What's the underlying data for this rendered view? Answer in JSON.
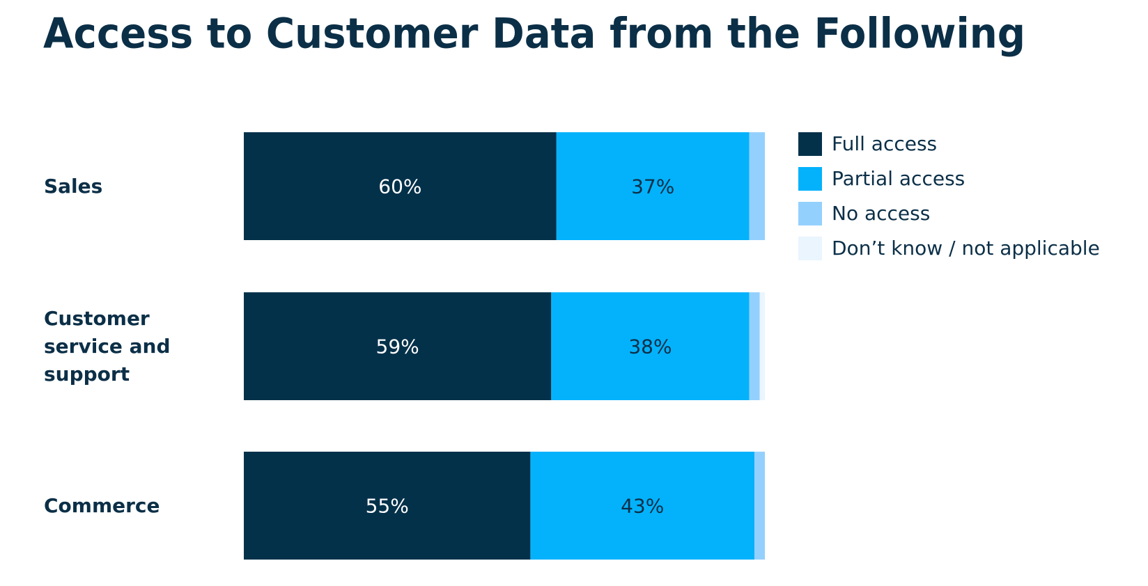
{
  "chart_data": {
    "type": "stacked-bar-horizontal",
    "title": "Access to Customer Data from the Following",
    "categories": [
      "Sales",
      "Customer service and support",
      "Commerce"
    ],
    "series": [
      {
        "name": "Full access",
        "color": "#04314a",
        "values": [
          60,
          59,
          55
        ],
        "value_labels": [
          "60%",
          "59%",
          "55%"
        ]
      },
      {
        "name": "Partial access",
        "color": "#04b2fb",
        "values": [
          37,
          38,
          43
        ],
        "value_labels": [
          "37%",
          "38%",
          "43%"
        ]
      },
      {
        "name": "No access",
        "color": "#94d0fd",
        "values": [
          3,
          2,
          2
        ]
      },
      {
        "name": "Don’t know / not applicable",
        "color": "#eaf5fe",
        "values": [
          0,
          1,
          0
        ]
      }
    ],
    "xlim": [
      0,
      100
    ],
    "legend": "right"
  }
}
